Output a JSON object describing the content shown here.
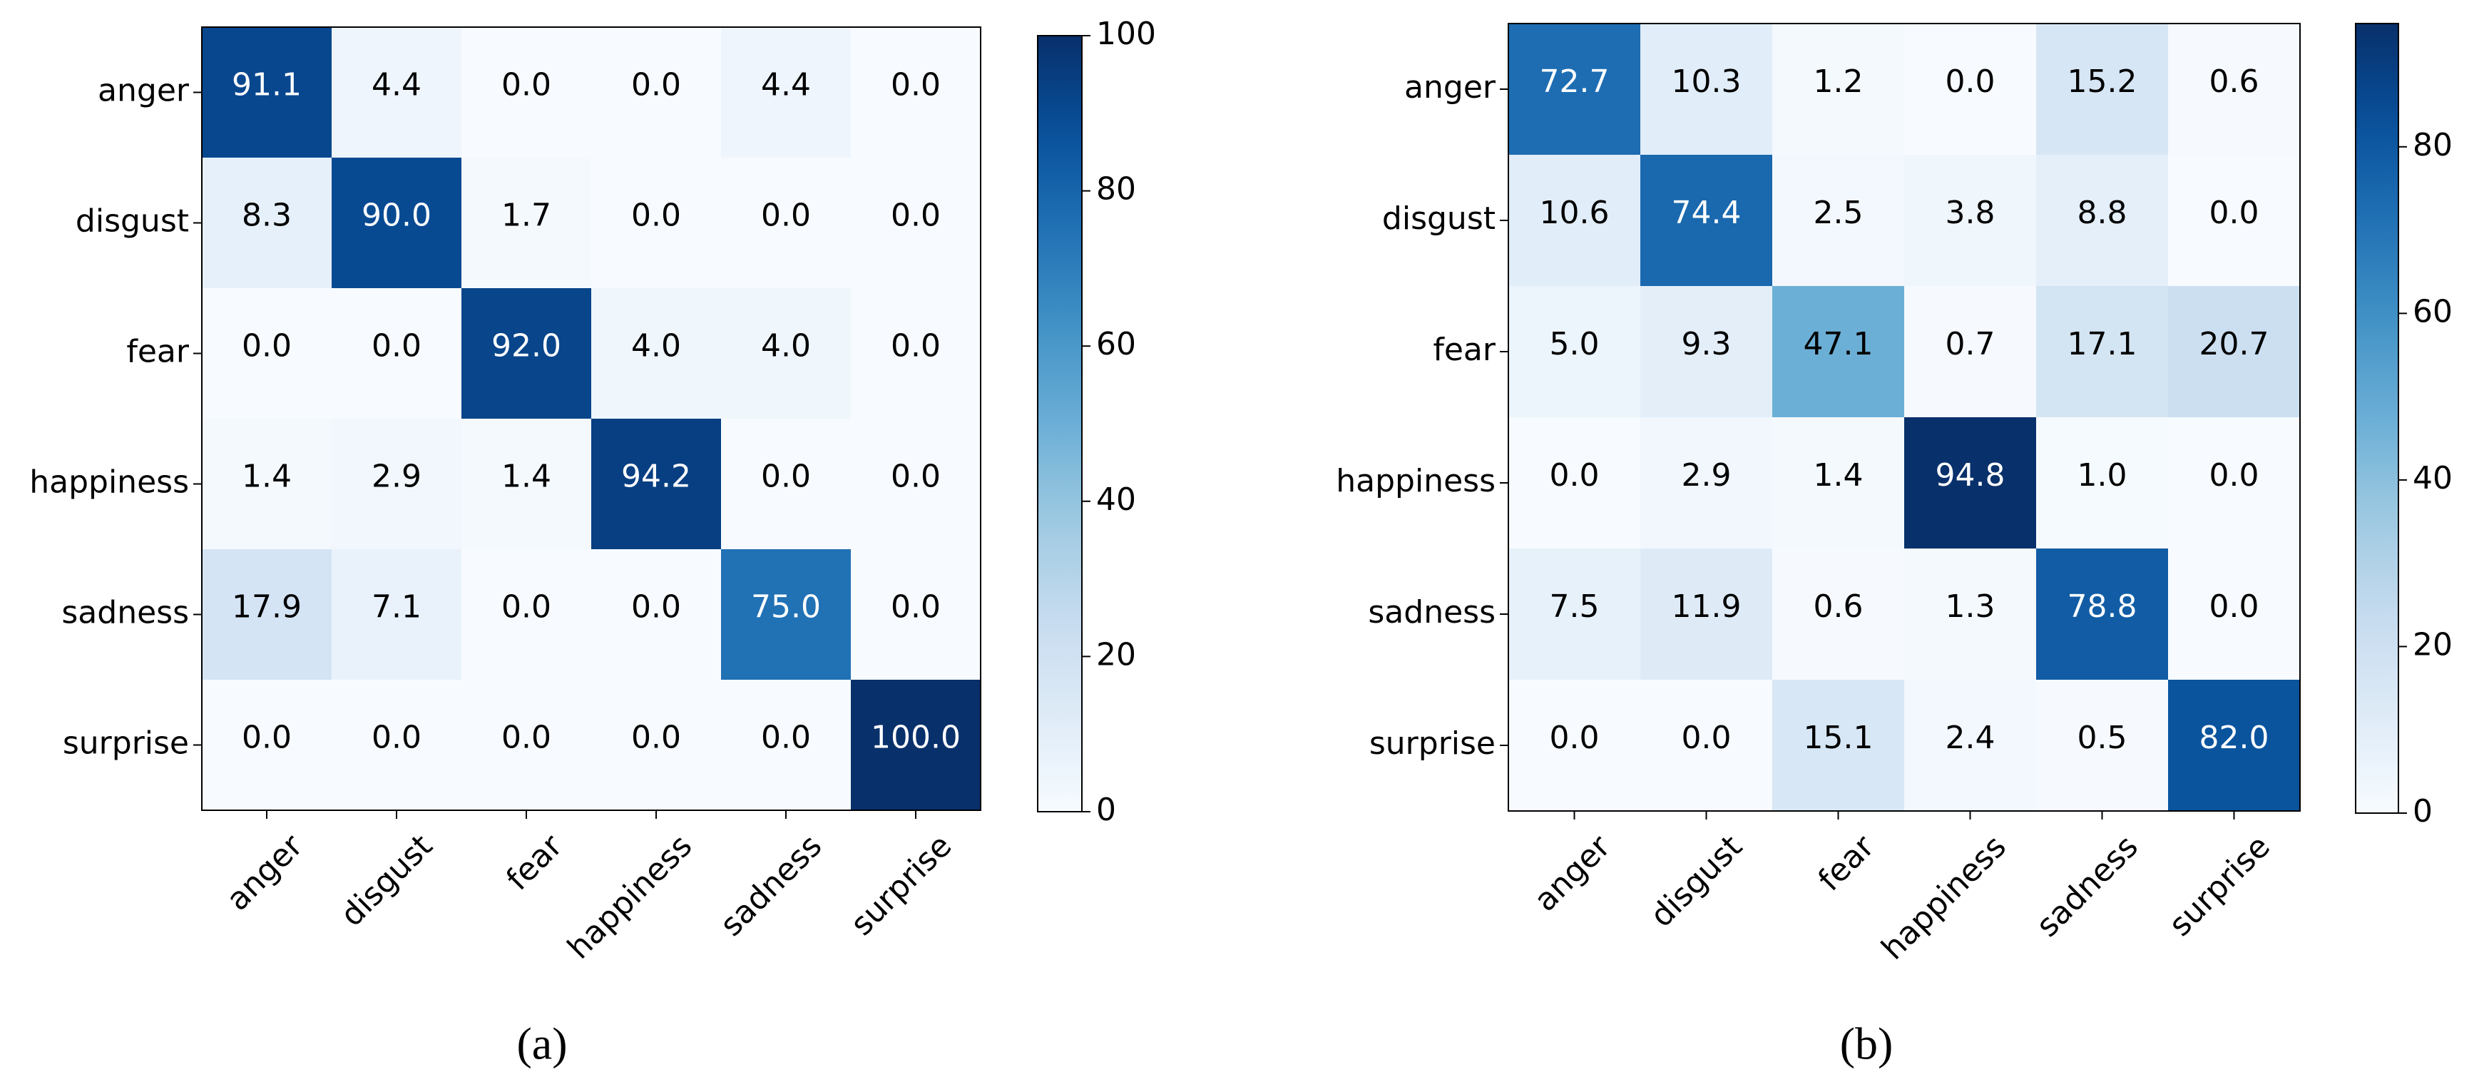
{
  "chart_data": [
    {
      "type": "heatmap",
      "panel_label": "(a)",
      "row_labels": [
        "anger",
        "disgust",
        "fear",
        "happiness",
        "sadness",
        "surprise"
      ],
      "col_labels": [
        "anger",
        "disgust",
        "fear",
        "happiness",
        "sadness",
        "surprise"
      ],
      "values": [
        [
          91.1,
          4.4,
          0.0,
          0.0,
          4.4,
          0.0
        ],
        [
          8.3,
          90.0,
          1.7,
          0.0,
          0.0,
          0.0
        ],
        [
          0.0,
          0.0,
          92.0,
          4.0,
          4.0,
          0.0
        ],
        [
          1.4,
          2.9,
          1.4,
          94.2,
          0.0,
          0.0
        ],
        [
          17.9,
          7.1,
          0.0,
          0.0,
          75.0,
          0.0
        ],
        [
          0.0,
          0.0,
          0.0,
          0.0,
          0.0,
          100.0
        ]
      ],
      "colorbar": {
        "min": 0,
        "max": 100,
        "ticks": [
          0,
          20,
          40,
          60,
          80,
          100
        ],
        "colormap": "Blues"
      }
    },
    {
      "type": "heatmap",
      "panel_label": "(b)",
      "row_labels": [
        "anger",
        "disgust",
        "fear",
        "happiness",
        "sadness",
        "surprise"
      ],
      "col_labels": [
        "anger",
        "disgust",
        "fear",
        "happiness",
        "sadness",
        "surprise"
      ],
      "values": [
        [
          72.7,
          10.3,
          1.2,
          0.0,
          15.2,
          0.6
        ],
        [
          10.6,
          74.4,
          2.5,
          3.8,
          8.8,
          0.0
        ],
        [
          5.0,
          9.3,
          47.1,
          0.7,
          17.1,
          20.7
        ],
        [
          0.0,
          2.9,
          1.4,
          94.8,
          1.0,
          0.0
        ],
        [
          7.5,
          11.9,
          0.6,
          1.3,
          78.8,
          0.0
        ],
        [
          0.0,
          0.0,
          15.1,
          2.4,
          0.5,
          82.0
        ]
      ],
      "colorbar": {
        "min": 0,
        "max": 94.8,
        "ticks": [
          0,
          20,
          40,
          60,
          80
        ],
        "colormap": "Blues"
      }
    }
  ]
}
